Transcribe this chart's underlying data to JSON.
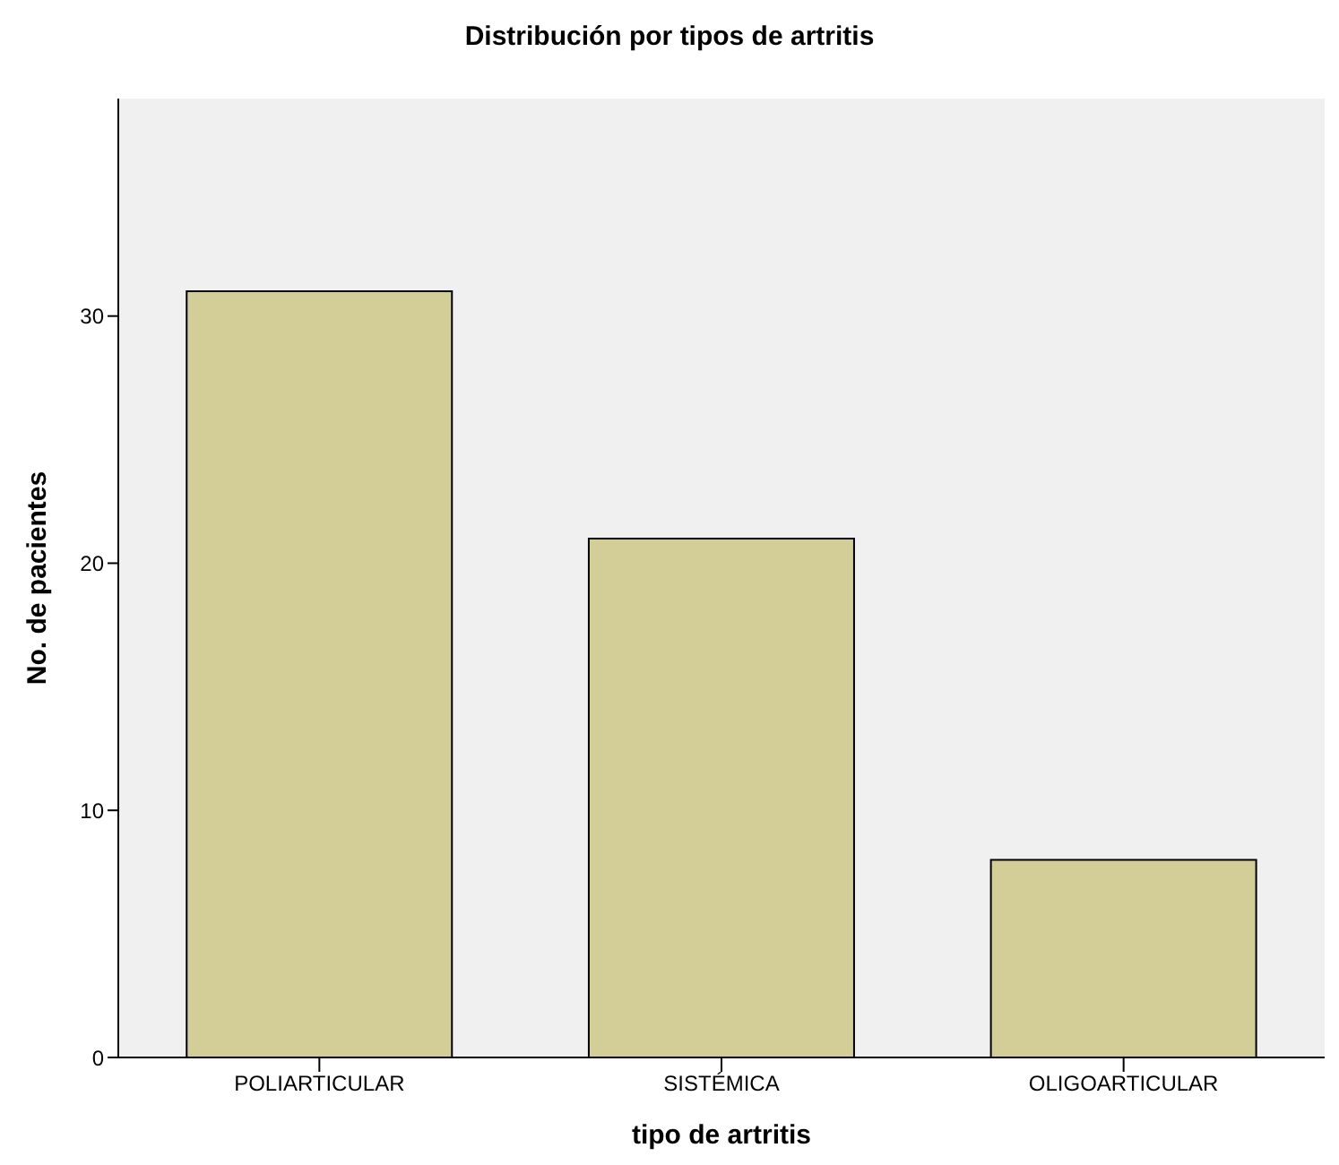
{
  "chart_data": {
    "type": "bar",
    "title": "Distribución por tipos de artritis",
    "xlabel": "tipo de artritis",
    "ylabel": "No. de pacientes",
    "categories": [
      "POLIARTICULAR",
      "SISTÉMICA",
      "OLIGOARTICULAR"
    ],
    "values": [
      31,
      21,
      8
    ],
    "color": "#d3cd98",
    "ylim": [
      0,
      38.8
    ],
    "yticks": [
      0,
      10,
      20,
      30
    ],
    "grid": false
  }
}
